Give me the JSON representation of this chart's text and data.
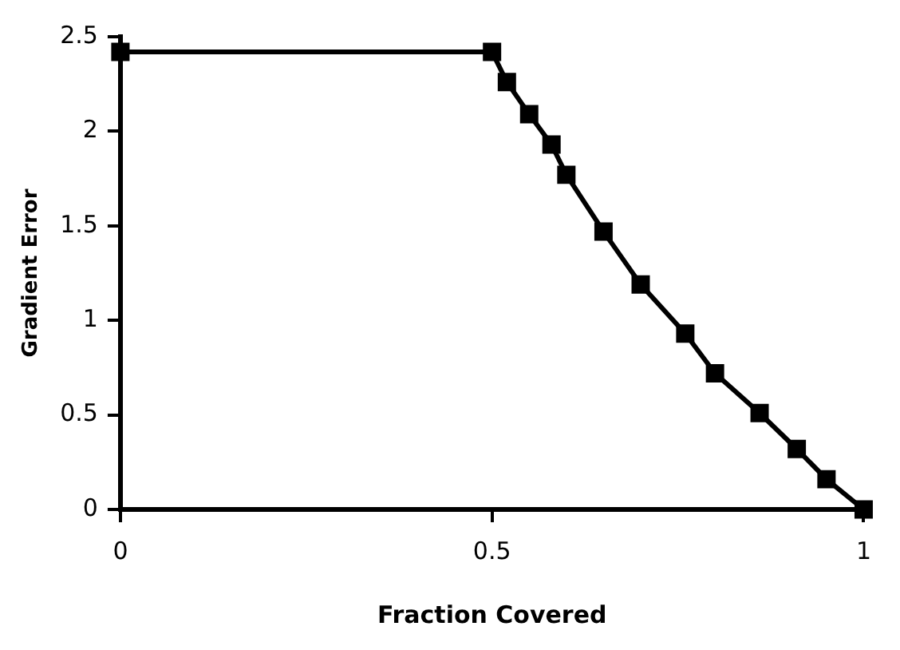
{
  "chart_data": {
    "type": "line",
    "xlabel": "Fraction Covered",
    "ylabel": "Gradient Error",
    "x": [
      0,
      0.5,
      0.52,
      0.55,
      0.58,
      0.6,
      0.65,
      0.7,
      0.76,
      0.8,
      0.86,
      0.91,
      0.95,
      1
    ],
    "series": [
      {
        "color": "#000000",
        "values": [
          2.42,
          2.42,
          2.26,
          2.09,
          1.93,
          1.77,
          1.47,
          1.19,
          0.93,
          0.72,
          0.51,
          0.32,
          0.16,
          0
        ]
      }
    ],
    "xlim": [
      0,
      1
    ],
    "xticks": [
      0,
      0.5,
      1
    ],
    "ylim": [
      0,
      2.5
    ],
    "yticks": [
      0,
      0.5,
      1,
      1.5,
      2,
      2.5
    ],
    "grid": false,
    "legend": false,
    "marker": "square",
    "line_style": "solid"
  }
}
